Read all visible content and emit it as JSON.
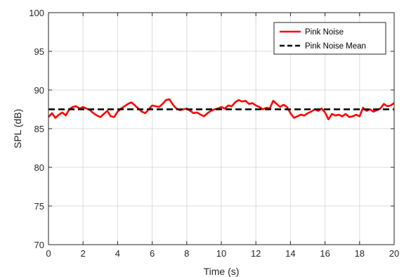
{
  "chart_data": {
    "type": "line",
    "xlabel": "Time (s)",
    "ylabel": "SPL (dB)",
    "xlim": [
      0,
      20
    ],
    "ylim": [
      70,
      100
    ],
    "xticks": [
      0,
      2,
      4,
      6,
      8,
      10,
      12,
      14,
      16,
      18,
      20
    ],
    "yticks": [
      70,
      75,
      80,
      85,
      90,
      95,
      100
    ],
    "grid": true,
    "legend_position": "top-right",
    "series": [
      {
        "name": "Pink Noise",
        "style": "solid",
        "color": "#ff0000",
        "x": [
          0.0,
          0.2,
          0.4,
          0.6,
          0.8,
          1.0,
          1.2,
          1.4,
          1.6,
          1.8,
          2.0,
          2.2,
          2.4,
          2.6,
          2.8,
          3.0,
          3.2,
          3.4,
          3.6,
          3.8,
          4.0,
          4.2,
          4.4,
          4.6,
          4.8,
          5.0,
          5.2,
          5.4,
          5.6,
          5.8,
          6.0,
          6.2,
          6.4,
          6.6,
          6.8,
          7.0,
          7.2,
          7.4,
          7.6,
          7.8,
          8.0,
          8.2,
          8.4,
          8.6,
          8.8,
          9.0,
          9.2,
          9.4,
          9.6,
          9.8,
          10.0,
          10.2,
          10.4,
          10.6,
          10.8,
          11.0,
          11.2,
          11.4,
          11.6,
          11.8,
          12.0,
          12.2,
          12.4,
          12.6,
          12.8,
          13.0,
          13.2,
          13.4,
          13.6,
          13.8,
          14.0,
          14.2,
          14.4,
          14.6,
          14.8,
          15.0,
          15.2,
          15.4,
          15.6,
          15.8,
          16.0,
          16.2,
          16.4,
          16.6,
          16.8,
          17.0,
          17.2,
          17.4,
          17.6,
          17.8,
          18.0,
          18.2,
          18.4,
          18.6,
          18.8,
          19.0,
          19.2,
          19.4,
          19.6,
          19.8,
          20.0
        ],
        "y": [
          86.5,
          87.0,
          86.4,
          86.8,
          87.1,
          86.7,
          87.5,
          87.8,
          87.9,
          87.6,
          87.8,
          87.6,
          87.4,
          87.0,
          86.7,
          86.5,
          86.9,
          87.3,
          86.6,
          86.5,
          87.2,
          87.6,
          87.9,
          88.2,
          88.4,
          88.0,
          87.6,
          87.2,
          87.0,
          87.5,
          88.0,
          87.9,
          87.8,
          88.2,
          88.7,
          88.8,
          88.1,
          87.6,
          87.4,
          87.5,
          87.6,
          87.3,
          87.0,
          87.1,
          86.8,
          86.6,
          87.0,
          87.3,
          87.5,
          87.6,
          87.8,
          87.6,
          88.0,
          87.9,
          88.4,
          88.7,
          88.5,
          88.6,
          88.2,
          88.3,
          88.0,
          87.8,
          87.5,
          87.7,
          87.6,
          88.6,
          88.2,
          87.8,
          88.1,
          87.8,
          87.0,
          86.4,
          86.6,
          86.8,
          86.7,
          87.0,
          87.2,
          87.5,
          87.3,
          87.6,
          87.1,
          86.2,
          86.9,
          86.7,
          86.8,
          86.6,
          86.9,
          86.5,
          86.6,
          86.8,
          86.6,
          87.7,
          87.3,
          87.5,
          87.2,
          87.4,
          87.6,
          88.2,
          87.9,
          88.0,
          88.3
        ]
      },
      {
        "name": "Pink Noise Mean",
        "style": "dashed",
        "color": "#000000",
        "x": [
          0,
          20
        ],
        "y": [
          87.5,
          87.5
        ]
      }
    ]
  }
}
